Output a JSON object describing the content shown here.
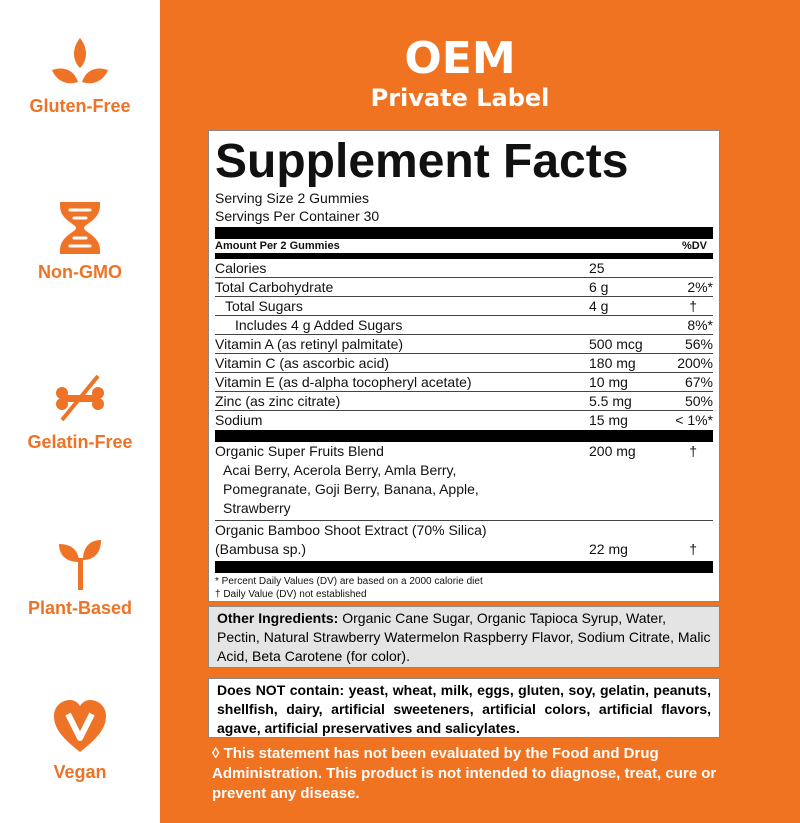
{
  "brand_color": "#f07322",
  "badges": [
    {
      "label": "Gluten-Free",
      "icon": "wheat-leaves-icon"
    },
    {
      "label": "Non-GMO",
      "icon": "dna-icon"
    },
    {
      "label": "Gelatin-Free",
      "icon": "crossed-bone-icon"
    },
    {
      "label": "Plant-Based",
      "icon": "sprout-icon"
    },
    {
      "label": "Vegan",
      "icon": "heart-v-icon"
    }
  ],
  "header": {
    "line1": "OEM",
    "line2": "Private Label"
  },
  "facts": {
    "title": "Supplement Facts",
    "serving_size": "Serving Size 2 Gummies",
    "servings_per_container": "Servings Per Container 30",
    "amount_header": "Amount Per 2 Gummies",
    "dv_header": "%DV",
    "rows": [
      {
        "name": "Calories",
        "amount": "25",
        "dv": ""
      },
      {
        "name": "Total Carbohydrate",
        "amount": "6 g",
        "dv": "2%*"
      },
      {
        "name": "Total Sugars",
        "amount": "4 g",
        "dv": "†"
      },
      {
        "name": "Includes 4 g Added Sugars",
        "amount": "",
        "dv": "8%*"
      },
      {
        "name": "Vitamin A (as retinyl palmitate)",
        "amount": "500 mcg",
        "dv": "56%"
      },
      {
        "name": "Vitamin C (as ascorbic acid)",
        "amount": "180 mg",
        "dv": "200%"
      },
      {
        "name": "Vitamin E (as d-alpha tocopheryl acetate)",
        "amount": "10 mg",
        "dv": "67%"
      },
      {
        "name": "Zinc (as zinc citrate)",
        "amount": "5.5 mg",
        "dv": "50%"
      },
      {
        "name": "Sodium",
        "amount": "15 mg",
        "dv": "< 1%*"
      }
    ],
    "blend": {
      "name": "Organic Super Fruits Blend",
      "amount": "200 mg",
      "dv": "†",
      "line1": "Acai Berry, Acerola Berry, Amla Berry,",
      "line2": "Pomegranate, Goji Berry, Banana, Apple,",
      "line3": "Strawberry"
    },
    "bamboo": {
      "name": "Organic Bamboo Shoot Extract (70% Silica)",
      "name2": "(Bambusa sp.)",
      "amount": "22 mg",
      "dv": "†"
    },
    "footnote1": "* Percent Daily Values (DV) are based on a 2000 calorie diet",
    "footnote2": "† Daily Value (DV) not established"
  },
  "other_ingredients": {
    "label": "Other Ingredients:",
    "text": " Organic Cane Sugar, Organic Tapioca Syrup, Water, Pectin, Natural Strawberry Watermelon Raspberry Flavor, Sodium Citrate, Malic Acid, Beta Carotene (for color)."
  },
  "does_not_contain": "Does NOT contain: yeast, wheat, milk, eggs, gluten, soy, gelatin, peanuts, shellfish, dairy, artificial sweeteners, artificial colors, artificial flavors, agave, artificial preservatives and salicylates.",
  "disclaimer": "◊ This statement has not been evaluated by the Food and Drug Administration. This product is not intended to diagnose, treat, cure or prevent any disease."
}
